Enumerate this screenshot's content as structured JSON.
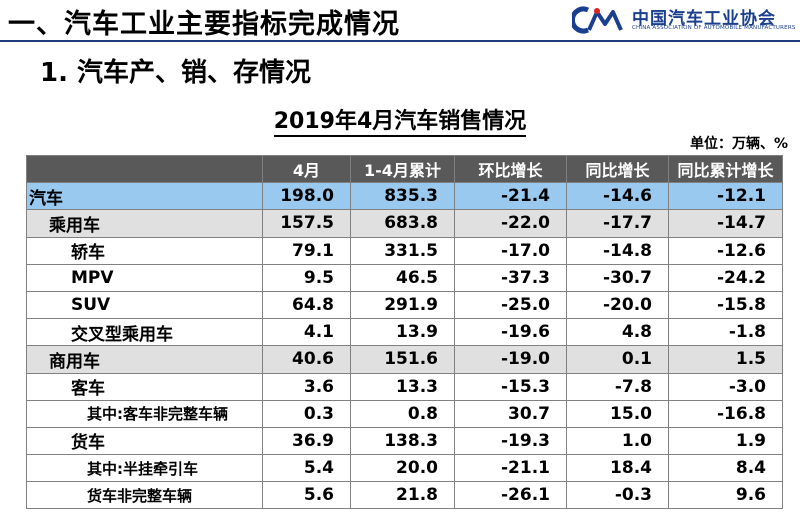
{
  "header": {
    "title": "一、汽车工业主要指标完成情况",
    "org_name": "中国汽车工业协会",
    "org_sub": "CHINA ASSOCIATION OF AUTOMOBILE MANUFACTURERS",
    "org_logo_letters": "CAM",
    "brand_color": "#1a3f8f"
  },
  "section_title": "1. 汽车产、销、存情况",
  "table_title": "2019年4月汽车销售情况",
  "unit": "单位：万辆、%",
  "table": {
    "columns": [
      "",
      "4月",
      "1-4月累计",
      "环比增长",
      "同比增长",
      "同比累计增长"
    ],
    "rows": [
      {
        "level": 0,
        "name": "汽车",
        "values": [
          "198.0",
          "835.3",
          "-21.4",
          "-14.6",
          "-12.1"
        ]
      },
      {
        "level": 1,
        "name": "乘用车",
        "values": [
          "157.5",
          "683.8",
          "-22.0",
          "-17.7",
          "-14.7"
        ]
      },
      {
        "level": 2,
        "name": "轿车",
        "values": [
          "79.1",
          "331.5",
          "-17.0",
          "-14.8",
          "-12.6"
        ]
      },
      {
        "level": 2,
        "name": "MPV",
        "values": [
          "9.5",
          "46.5",
          "-37.3",
          "-30.7",
          "-24.2"
        ]
      },
      {
        "level": 2,
        "name": "SUV",
        "values": [
          "64.8",
          "291.9",
          "-25.0",
          "-20.0",
          "-15.8"
        ]
      },
      {
        "level": 2,
        "name": "交叉型乘用车",
        "values": [
          "4.1",
          "13.9",
          "-19.6",
          "4.8",
          "-1.8"
        ]
      },
      {
        "level": 1,
        "name": "商用车",
        "values": [
          "40.6",
          "151.6",
          "-19.0",
          "0.1",
          "1.5"
        ]
      },
      {
        "level": 2,
        "name": "客车",
        "values": [
          "3.6",
          "13.3",
          "-15.3",
          "-7.8",
          "-3.0"
        ]
      },
      {
        "level": 3,
        "name": "其中:客车非完整车辆",
        "values": [
          "0.3",
          "0.8",
          "30.7",
          "15.0",
          "-16.8"
        ]
      },
      {
        "level": 2,
        "name": "货车",
        "values": [
          "36.9",
          "138.3",
          "-19.3",
          "1.0",
          "1.9"
        ]
      },
      {
        "level": 3,
        "name": "其中:半挂牵引车",
        "values": [
          "5.4",
          "20.0",
          "-21.1",
          "18.4",
          "8.4"
        ]
      },
      {
        "level": 3,
        "name": "货车非完整车辆",
        "values": [
          "5.6",
          "21.8",
          "-26.1",
          "-0.3",
          "9.6"
        ]
      }
    ]
  }
}
